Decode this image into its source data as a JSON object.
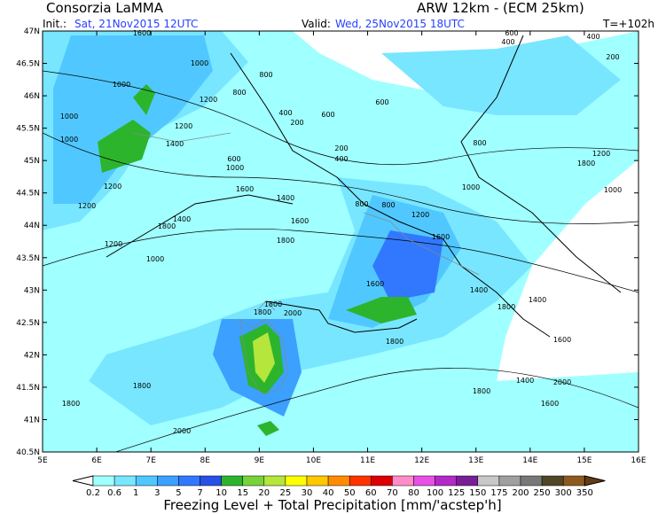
{
  "header": {
    "title": "Consorzia LaMMA",
    "model": "ARW 12km - (ECM 25km)",
    "init_label": "Init.:",
    "init": "Sat, 21Nov2015 12UTC",
    "valid_label": "Valid:",
    "valid": "Wed, 25Nov2015 18UTC",
    "lead": "T=+102h"
  },
  "map": {
    "lat_labels": [
      "47N",
      "46.5N",
      "46N",
      "45.5N",
      "45N",
      "44.5N",
      "44N",
      "43.5N",
      "43N",
      "42.5N",
      "42N",
      "41.5N",
      "41N",
      "40.5N"
    ],
    "lon_labels": [
      "5E",
      "6E",
      "7E",
      "8E",
      "9E",
      "10E",
      "11E",
      "12E",
      "13E",
      "14E",
      "15E",
      "16E"
    ],
    "contour_labels": [
      "1600",
      "1000",
      "1000",
      "1000",
      "1000",
      "1200",
      "1200",
      "1400",
      "800",
      "800",
      "400",
      "200",
      "600",
      "600",
      "200",
      "400",
      "600",
      "1000",
      "1600",
      "1400",
      "1600",
      "800",
      "800",
      "1200",
      "1200",
      "1200",
      "1400",
      "1800",
      "1200",
      "1000",
      "1800",
      "1600",
      "1600",
      "1800",
      "2000",
      "1800",
      "1800",
      "1400",
      "1800",
      "1400",
      "1600",
      "2000",
      "1400",
      "1800",
      "1600",
      "1800",
      "1800",
      "2000",
      "800",
      "1000",
      "1000",
      "400",
      "200",
      "400",
      "600",
      "1200",
      "1800"
    ]
  },
  "colorbar": {
    "labels": [
      "0.2",
      "0.6",
      "1",
      "3",
      "5",
      "7",
      "10",
      "15",
      "20",
      "25",
      "30",
      "40",
      "50",
      "60",
      "70",
      "80",
      "100",
      "125",
      "150",
      "175",
      "200",
      "250",
      "300",
      "350"
    ],
    "colors": [
      "#ffffff",
      "#a0ffff",
      "#78e6ff",
      "#50c8ff",
      "#3ca0ff",
      "#3278ff",
      "#2850e6",
      "#2db42d",
      "#78d23c",
      "#b4e63c",
      "#ffff00",
      "#ffc800",
      "#ff8c00",
      "#ff3200",
      "#dc0000",
      "#ff8cc8",
      "#e650e6",
      "#b428c8",
      "#781e96",
      "#c8c8c8",
      "#a0a0a0",
      "#787878",
      "#504628",
      "#8c5a1e",
      "#643c14"
    ],
    "title": "Freezing Level + Total Precipitation [mm/'acstep'h]"
  }
}
